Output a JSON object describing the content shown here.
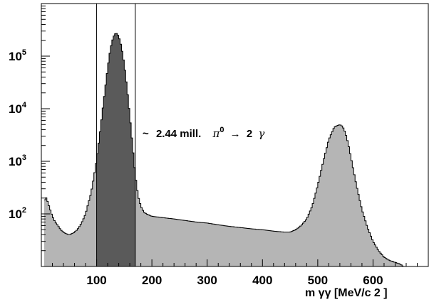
{
  "chart_data": {
    "type": "area",
    "title": "",
    "xlabel": "m γγ [MeV/c 2 ]",
    "ylabel": "",
    "xlim": [
      0,
      700
    ],
    "ylim": [
      10,
      1000000
    ],
    "yscale": "log",
    "x_ticks": [
      100,
      200,
      300,
      400,
      500,
      600
    ],
    "y_ticks": [
      {
        "value": 100,
        "base": "10",
        "exp": "2"
      },
      {
        "value": 1000,
        "base": "10",
        "exp": "3"
      },
      {
        "value": 10000,
        "base": "10",
        "exp": "4"
      },
      {
        "value": 100000,
        "base": "10",
        "exp": "5"
      }
    ],
    "grid": false,
    "selection_window": [
      100,
      170
    ],
    "annotation": {
      "tilde": "~",
      "count_text": "2.44 mill.",
      "decay_particle": "π",
      "decay_sup": "0",
      "arrow": "→",
      "decay_product_count": "2",
      "decay_product": "γ"
    },
    "series": [
      {
        "fill": "#b5b5b5",
        "stroke": "#000000",
        "x": [
          5,
          8,
          10,
          15,
          20,
          25,
          30,
          35,
          40,
          45,
          50,
          55,
          60,
          65,
          70,
          75,
          80,
          85,
          90,
          95,
          100,
          105,
          110,
          115,
          120,
          125,
          130,
          135,
          140,
          145,
          150,
          155,
          160,
          165,
          170,
          175,
          180,
          185,
          190,
          200,
          220,
          240,
          260,
          280,
          300,
          320,
          340,
          360,
          380,
          400,
          420,
          440,
          450,
          460,
          470,
          480,
          490,
          500,
          510,
          520,
          530,
          540,
          545,
          550,
          555,
          560,
          570,
          580,
          590,
          600,
          610,
          620,
          630,
          640,
          650,
          655
        ],
        "values": [
          170,
          210,
          190,
          130,
          90,
          70,
          60,
          50,
          45,
          42,
          40,
          42,
          45,
          50,
          60,
          75,
          100,
          160,
          250,
          500,
          1100,
          2800,
          8000,
          22000,
          60000,
          140000,
          230000,
          280000,
          240000,
          150000,
          70000,
          25000,
          7500,
          2000,
          550,
          220,
          140,
          110,
          100,
          90,
          85,
          80,
          75,
          70,
          67,
          62,
          58,
          55,
          52,
          50,
          47,
          45,
          45,
          50,
          60,
          80,
          140,
          350,
          1000,
          2600,
          4500,
          5000,
          4600,
          3500,
          2200,
          1200,
          350,
          120,
          55,
          30,
          20,
          15,
          13,
          12,
          11,
          10
        ]
      }
    ]
  }
}
